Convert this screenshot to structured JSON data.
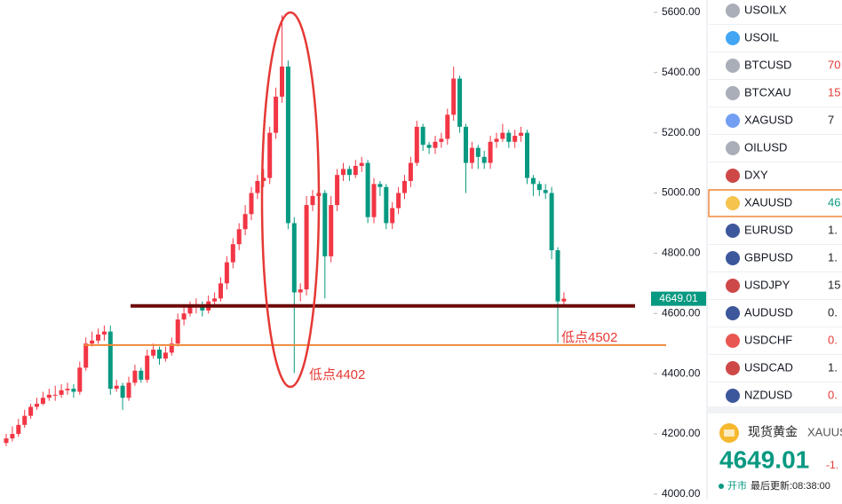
{
  "chart_data": {
    "type": "candlestick",
    "up_color": "#f23645",
    "down_color": "#089981",
    "open": [
      4170,
      4185,
      4200,
      4230,
      4260,
      4290,
      4300,
      4320,
      4330,
      4330,
      4345,
      4350,
      4340,
      4420,
      4500,
      4510,
      4530,
      4540,
      4350,
      4360,
      4320,
      4370,
      4410,
      4380,
      4460,
      4480,
      4450,
      4470,
      4500,
      4580,
      4600,
      4620,
      4630,
      4610,
      4640,
      4650,
      4700,
      4770,
      4830,
      4880,
      4930,
      5000,
      5040,
      5050,
      5200,
      5320,
      5420,
      4900,
      4670,
      4680,
      4960,
      4990,
      5000,
      4790,
      4960,
      5060,
      5080,
      5060,
      5090,
      5100,
      4920,
      5030,
      5020,
      4900,
      4950,
      5000,
      5040,
      5100,
      5220,
      5160,
      5150,
      5170,
      5180,
      5260,
      5380,
      5220,
      5100,
      5150,
      5120,
      5100,
      5170,
      5180,
      5200,
      5170,
      5190,
      5200,
      5050,
      5030,
      5010,
      5000,
      4810,
      4640
    ],
    "high": [
      4200,
      4225,
      4250,
      4280,
      4300,
      4320,
      4340,
      4350,
      4360,
      4365,
      4370,
      4365,
      4440,
      4520,
      4540,
      4550,
      4560,
      4560,
      4380,
      4370,
      4390,
      4430,
      4420,
      4480,
      4500,
      4490,
      4490,
      4520,
      4600,
      4620,
      4640,
      4650,
      4640,
      4660,
      4670,
      4720,
      4790,
      4850,
      4900,
      4960,
      5020,
      5060,
      5080,
      5220,
      5350,
      5590,
      5440,
      4920,
      4700,
      4990,
      5010,
      5030,
      5010,
      4990,
      5080,
      5100,
      5090,
      5110,
      5120,
      5110,
      5050,
      5040,
      5030,
      4970,
      5020,
      5060,
      5120,
      5240,
      5230,
      5170,
      5190,
      5200,
      5280,
      5420,
      5390,
      5230,
      5170,
      5160,
      5140,
      5190,
      5200,
      5230,
      5210,
      5210,
      5220,
      5210,
      5060,
      5040,
      5030,
      5020,
      4820,
      4670
    ],
    "low": [
      4160,
      4175,
      4190,
      4220,
      4250,
      4280,
      4295,
      4310,
      4310,
      4320,
      4330,
      4320,
      4330,
      4410,
      4490,
      4500,
      4510,
      4330,
      4340,
      4280,
      4310,
      4360,
      4370,
      4370,
      4450,
      4430,
      4440,
      4460,
      4490,
      4560,
      4590,
      4600,
      4590,
      4600,
      4620,
      4640,
      4680,
      4750,
      4810,
      4860,
      4910,
      4980,
      5020,
      5030,
      5180,
      5300,
      4880,
      4402,
      4640,
      4660,
      4940,
      4970,
      4650,
      4770,
      4940,
      5040,
      5040,
      5050,
      5070,
      4900,
      4900,
      4990,
      4880,
      4880,
      4930,
      4980,
      5020,
      5090,
      5140,
      5130,
      5130,
      5150,
      5160,
      5240,
      5200,
      5000,
      5080,
      5080,
      5080,
      5080,
      5150,
      5170,
      5150,
      5150,
      5170,
      5030,
      4990,
      4990,
      4980,
      4780,
      4502,
      4630
    ],
    "close": [
      4185,
      4200,
      4230,
      4260,
      4290,
      4300,
      4320,
      4330,
      4330,
      4345,
      4350,
      4340,
      4420,
      4500,
      4510,
      4530,
      4540,
      4350,
      4360,
      4320,
      4370,
      4410,
      4380,
      4460,
      4480,
      4450,
      4470,
      4500,
      4580,
      4600,
      4620,
      4630,
      4610,
      4640,
      4650,
      4700,
      4770,
      4830,
      4880,
      4930,
      5000,
      5040,
      5050,
      5200,
      5320,
      5420,
      4900,
      4670,
      4680,
      4960,
      4990,
      5000,
      4790,
      4960,
      5060,
      5080,
      5060,
      5090,
      5100,
      4920,
      5030,
      5020,
      4900,
      4950,
      5000,
      5040,
      5100,
      5220,
      5160,
      5150,
      5170,
      5180,
      5260,
      5380,
      5220,
      5100,
      5150,
      5120,
      5100,
      5170,
      5180,
      5200,
      5170,
      5190,
      5200,
      5050,
      5030,
      5010,
      5000,
      4810,
      4640,
      4649
    ],
    "ylim": [
      3982,
      5641
    ],
    "yticks": [
      {
        "value": 4000,
        "label": "4000.00"
      },
      {
        "value": 4200,
        "label": "4200.00"
      },
      {
        "value": 4400,
        "label": "4400.00"
      },
      {
        "value": 4600,
        "label": "4600.00"
      },
      {
        "value": 4800,
        "label": "4800.00"
      },
      {
        "value": 5000,
        "label": "5000.00"
      },
      {
        "value": 5200,
        "label": "5200.00"
      },
      {
        "value": 5400,
        "label": "5400.00"
      },
      {
        "value": 5600,
        "label": "5600.00"
      }
    ],
    "last_price": {
      "value": 4649.01,
      "label": "4649.01"
    },
    "levels": [
      {
        "value": 4625,
        "color": "#6e0a0a"
      },
      {
        "value": 4495,
        "color": "#f0883a"
      }
    ],
    "annotations": [
      "低点4402",
      "低点4502"
    ]
  },
  "watchlist": [
    {
      "symbol": "USOILX"
    },
    {
      "symbol": "USOIL"
    },
    {
      "symbol": "BTCUSD",
      "value": "70",
      "color": "#e53935"
    },
    {
      "symbol": "BTCXAU",
      "value": "15",
      "color": "#e53935"
    },
    {
      "symbol": "XAGUSD",
      "value": "7",
      "color": "#222"
    },
    {
      "symbol": "OILUSD"
    },
    {
      "symbol": "DXY"
    },
    {
      "symbol": "XAUUSD",
      "value": "46",
      "color": "#089981"
    },
    {
      "symbol": "EURUSD",
      "value": "1.",
      "color": "#222"
    },
    {
      "symbol": "GBPUSD",
      "value": "1.",
      "color": "#222"
    },
    {
      "symbol": "USDJPY",
      "value": "15",
      "color": "#222"
    },
    {
      "symbol": "AUDUSD",
      "value": "0.",
      "color": "#222"
    },
    {
      "symbol": "USDCHF",
      "value": "0.",
      "color": "#e53935"
    },
    {
      "symbol": "USDCAD",
      "value": "1.",
      "color": "#222"
    },
    {
      "symbol": "NZDUSD",
      "value": "0.",
      "color": "#e53935"
    }
  ],
  "quote": {
    "name": "现货黄金",
    "symbol": "XAUUS",
    "price": "4649.01",
    "change": "-1.",
    "status": "开市",
    "updated": "最后更新:08:38:00"
  }
}
